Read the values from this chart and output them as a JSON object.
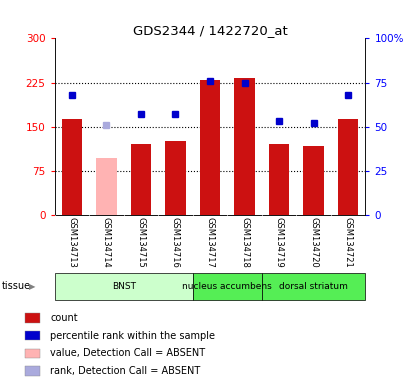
{
  "title": "GDS2344 / 1422720_at",
  "samples": [
    "GSM134713",
    "GSM134714",
    "GSM134715",
    "GSM134716",
    "GSM134717",
    "GSM134718",
    "GSM134719",
    "GSM134720",
    "GSM134721"
  ],
  "count_values": [
    163,
    null,
    120,
    125,
    230,
    232,
    120,
    117,
    163
  ],
  "count_absent": [
    null,
    97,
    null,
    null,
    null,
    null,
    null,
    null,
    null
  ],
  "rank_pct": [
    68,
    null,
    57,
    57,
    76,
    75,
    53,
    52,
    68
  ],
  "rank_absent_pct": [
    null,
    51,
    null,
    null,
    null,
    null,
    null,
    null,
    null
  ],
  "ylim_left": [
    0,
    300
  ],
  "ylim_right": [
    0,
    100
  ],
  "yticks_left": [
    0,
    75,
    150,
    225,
    300
  ],
  "ytick_labels_left": [
    "0",
    "75",
    "150",
    "225",
    "300"
  ],
  "yticks_right": [
    0,
    25,
    50,
    75,
    100
  ],
  "ytick_labels_right": [
    "0",
    "25",
    "50",
    "75",
    "100%"
  ],
  "bar_color": "#cc1111",
  "bar_absent_color": "#ffb3b3",
  "rank_color": "#0000cc",
  "rank_absent_color": "#aaaadd",
  "tissue_data": [
    {
      "label": "BNST",
      "start": 0,
      "end": 4,
      "color": "#ccffcc"
    },
    {
      "label": "nucleus accumbens",
      "start": 4,
      "end": 6,
      "color": "#55ee55"
    },
    {
      "label": "dorsal striatum",
      "start": 6,
      "end": 9,
      "color": "#55ee55"
    }
  ],
  "tissue_label": "tissue",
  "bg_color": "#ffffff",
  "legend_items": [
    {
      "label": "count",
      "color": "#cc1111"
    },
    {
      "label": "percentile rank within the sample",
      "color": "#0000cc"
    },
    {
      "label": "value, Detection Call = ABSENT",
      "color": "#ffb3b3"
    },
    {
      "label": "rank, Detection Call = ABSENT",
      "color": "#aaaadd"
    }
  ]
}
